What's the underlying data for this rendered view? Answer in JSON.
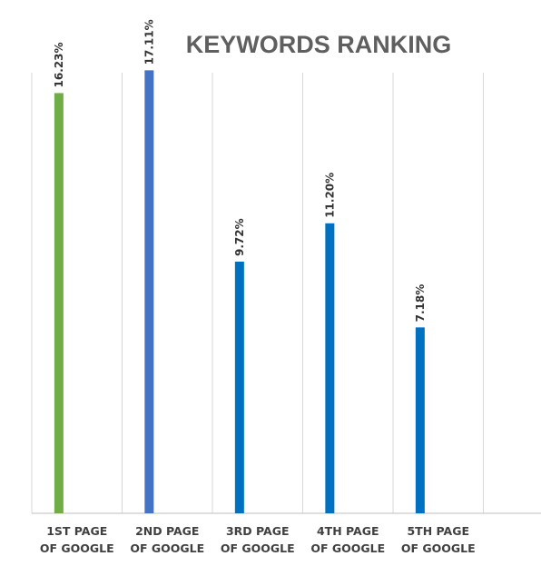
{
  "chart_data": {
    "type": "bar",
    "title": "KEYWORDS RANKING",
    "categories": [
      [
        "1ST PAGE",
        "OF GOOGLE"
      ],
      [
        "2ND PAGE",
        "OF GOOGLE"
      ],
      [
        "3RD PAGE",
        "OF GOOGLE"
      ],
      [
        "4TH PAGE",
        "OF GOOGLE"
      ],
      [
        "5TH PAGE",
        "OF GOOGLE"
      ]
    ],
    "values": [
      16.23,
      17.11,
      9.72,
      11.2,
      7.18
    ],
    "data_labels": [
      "16.23%",
      "17.11%",
      "9.72%",
      "11.20%",
      "7.18%"
    ],
    "colors": [
      "#70ad47",
      "#4472c4",
      "#0070c0",
      "#0070c0",
      "#0070c0"
    ],
    "ylim": [
      0,
      20
    ],
    "grid": true,
    "xlabel": "",
    "ylabel": ""
  }
}
